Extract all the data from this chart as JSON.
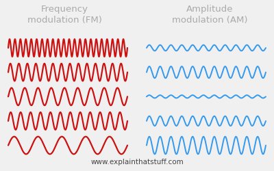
{
  "title_fm": "Frequency\nmodulation (FM)",
  "title_am": "Amplitude\nmodulation (AM)",
  "footer": "www.explainthatstuff.com",
  "bg_color": "#f0f0f0",
  "fm_color": "#cc1111",
  "am_color": "#3399ee",
  "fm_frequencies": [
    22,
    14,
    9,
    12,
    5
  ],
  "am_amplitudes": [
    0.3,
    0.6,
    0.15,
    0.5,
    0.9
  ],
  "am_base_freq": 11,
  "wave_rows": 5,
  "title_fontsize": 9.5,
  "footer_fontsize": 7.5,
  "lw_fm": 1.6,
  "lw_am": 1.4
}
